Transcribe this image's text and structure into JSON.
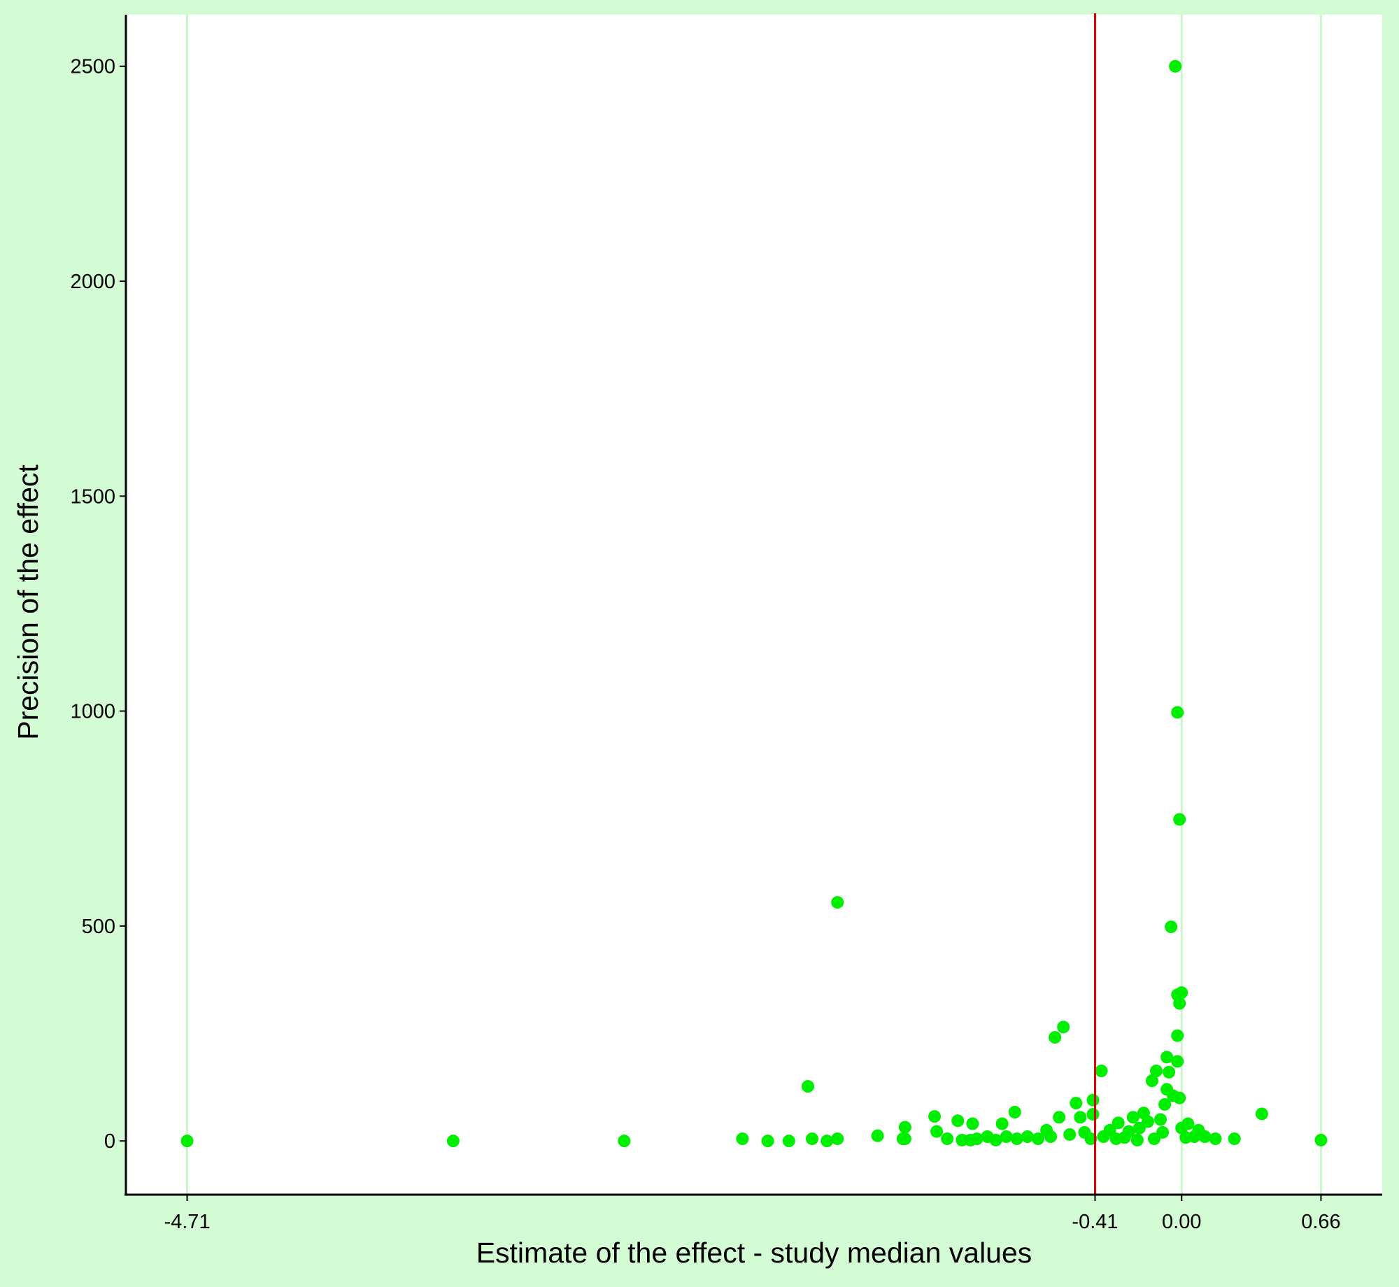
{
  "colors": {
    "outer_background": "#d4fcd4",
    "panel_background": "#ffffff",
    "point": "#00ee00",
    "reference_line": "#dd0000",
    "reference_label": "#dd0000",
    "vertical_gridline": "#c8f8c8",
    "axis": "#000000"
  },
  "chart_data": {
    "type": "scatter",
    "title": "",
    "xlabel": "Estimate of the effect - study median values",
    "ylabel": "Precision of the effect",
    "xlim": [
      -5.0,
      0.95
    ],
    "ylim": [
      -125,
      2620
    ],
    "x_ticks": [
      {
        "value": -4.71,
        "label": "-4.71"
      },
      {
        "value": -0.41,
        "label": "-0.41",
        "highlight": true
      },
      {
        "value": 0.0,
        "label": "0.00"
      },
      {
        "value": 0.66,
        "label": "0.66"
      }
    ],
    "y_ticks": [
      {
        "value": 0,
        "label": "0"
      },
      {
        "value": 500,
        "label": "500"
      },
      {
        "value": 1000,
        "label": "1000"
      },
      {
        "value": 1500,
        "label": "1500"
      },
      {
        "value": 2000,
        "label": "2000"
      },
      {
        "value": 2500,
        "label": "2500"
      }
    ],
    "vertical_gridlines": [
      -4.71,
      0.0,
      0.66
    ],
    "reference_line": {
      "x": -0.41,
      "label": "-0.41"
    },
    "grid": false,
    "legend": "none",
    "points": [
      {
        "x": -4.71,
        "y": 0
      },
      {
        "x": -3.45,
        "y": 0
      },
      {
        "x": -2.64,
        "y": 0
      },
      {
        "x": -2.08,
        "y": 5
      },
      {
        "x": -1.96,
        "y": 0
      },
      {
        "x": -1.86,
        "y": 0
      },
      {
        "x": -1.75,
        "y": 5
      },
      {
        "x": -1.68,
        "y": 0
      },
      {
        "x": -1.63,
        "y": 5
      },
      {
        "x": -1.77,
        "y": 127
      },
      {
        "x": -1.63,
        "y": 555
      },
      {
        "x": -1.44,
        "y": 12
      },
      {
        "x": -1.32,
        "y": 5
      },
      {
        "x": -1.31,
        "y": 5
      },
      {
        "x": -1.31,
        "y": 32
      },
      {
        "x": -1.17,
        "y": 57
      },
      {
        "x": -1.16,
        "y": 22
      },
      {
        "x": -1.11,
        "y": 5
      },
      {
        "x": -1.06,
        "y": 47
      },
      {
        "x": -1.04,
        "y": 2
      },
      {
        "x": -1.0,
        "y": 2
      },
      {
        "x": -0.99,
        "y": 40
      },
      {
        "x": -0.97,
        "y": 5
      },
      {
        "x": -0.92,
        "y": 10
      },
      {
        "x": -0.88,
        "y": 2
      },
      {
        "x": -0.85,
        "y": 40
      },
      {
        "x": -0.83,
        "y": 10
      },
      {
        "x": -0.79,
        "y": 67
      },
      {
        "x": -0.78,
        "y": 5
      },
      {
        "x": -0.73,
        "y": 10
      },
      {
        "x": -0.68,
        "y": 5
      },
      {
        "x": -0.64,
        "y": 25
      },
      {
        "x": -0.62,
        "y": 10
      },
      {
        "x": -0.6,
        "y": 241
      },
      {
        "x": -0.58,
        "y": 55
      },
      {
        "x": -0.56,
        "y": 265
      },
      {
        "x": -0.53,
        "y": 15
      },
      {
        "x": -0.5,
        "y": 88
      },
      {
        "x": -0.48,
        "y": 55
      },
      {
        "x": -0.46,
        "y": 20
      },
      {
        "x": -0.43,
        "y": 5
      },
      {
        "x": -0.42,
        "y": 95
      },
      {
        "x": -0.42,
        "y": 62
      },
      {
        "x": -0.38,
        "y": 163
      },
      {
        "x": -0.37,
        "y": 10
      },
      {
        "x": -0.34,
        "y": 25
      },
      {
        "x": -0.31,
        "y": 5
      },
      {
        "x": -0.3,
        "y": 42
      },
      {
        "x": -0.27,
        "y": 8
      },
      {
        "x": -0.25,
        "y": 22
      },
      {
        "x": -0.23,
        "y": 55
      },
      {
        "x": -0.21,
        "y": 2
      },
      {
        "x": -0.2,
        "y": 30
      },
      {
        "x": -0.18,
        "y": 65
      },
      {
        "x": -0.16,
        "y": 45
      },
      {
        "x": -0.14,
        "y": 140
      },
      {
        "x": -0.13,
        "y": 5
      },
      {
        "x": -0.12,
        "y": 163
      },
      {
        "x": -0.1,
        "y": 50
      },
      {
        "x": -0.09,
        "y": 20
      },
      {
        "x": -0.08,
        "y": 85
      },
      {
        "x": -0.07,
        "y": 195
      },
      {
        "x": -0.07,
        "y": 120
      },
      {
        "x": -0.06,
        "y": 160
      },
      {
        "x": -0.05,
        "y": 498
      },
      {
        "x": -0.04,
        "y": 105
      },
      {
        "x": -0.03,
        "y": 2500
      },
      {
        "x": -0.02,
        "y": 997
      },
      {
        "x": -0.02,
        "y": 340
      },
      {
        "x": -0.02,
        "y": 245
      },
      {
        "x": -0.02,
        "y": 185
      },
      {
        "x": -0.01,
        "y": 748
      },
      {
        "x": -0.01,
        "y": 320
      },
      {
        "x": -0.01,
        "y": 100
      },
      {
        "x": 0.0,
        "y": 345
      },
      {
        "x": 0.0,
        "y": 30
      },
      {
        "x": 0.02,
        "y": 8
      },
      {
        "x": 0.03,
        "y": 40
      },
      {
        "x": 0.06,
        "y": 10
      },
      {
        "x": 0.08,
        "y": 25
      },
      {
        "x": 0.11,
        "y": 10
      },
      {
        "x": 0.16,
        "y": 5
      },
      {
        "x": 0.25,
        "y": 5
      },
      {
        "x": 0.38,
        "y": 63
      },
      {
        "x": 0.66,
        "y": 2
      }
    ]
  }
}
